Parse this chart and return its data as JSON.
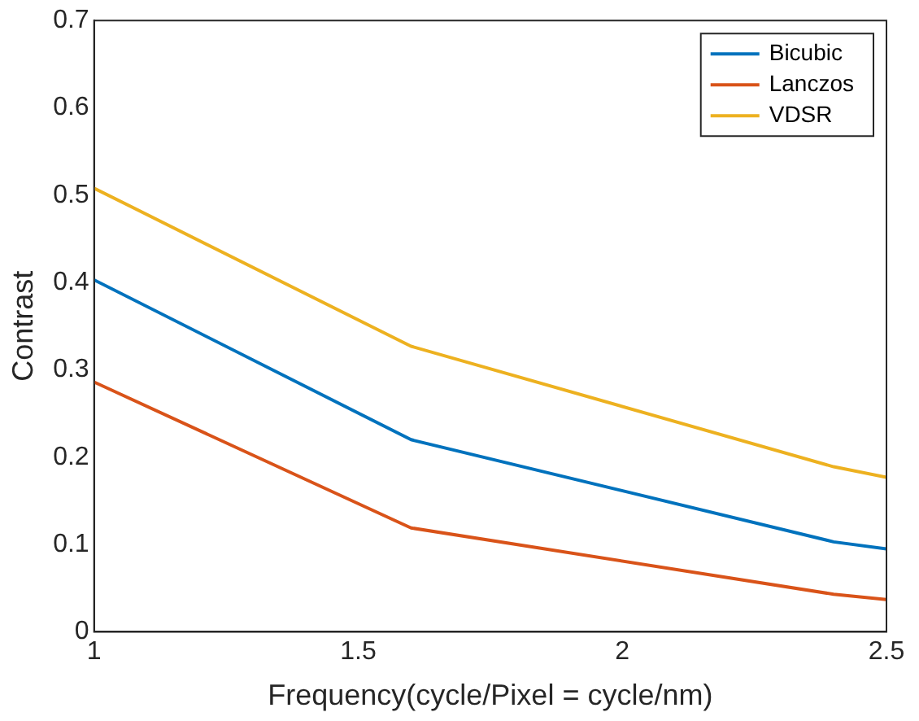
{
  "chart_data": {
    "type": "line",
    "xlabel": "Frequency(cycle/Pixel = cycle/nm)",
    "ylabel": "Contrast",
    "x": [
      1,
      1.6,
      2.4,
      2.5
    ],
    "series": [
      {
        "name": "Bicubic",
        "color": "#0072bd",
        "values": [
          0.403,
          0.22,
          0.103,
          0.095
        ]
      },
      {
        "name": "Lanczos",
        "color": "#d95319",
        "values": [
          0.286,
          0.119,
          0.043,
          0.037
        ]
      },
      {
        "name": "VDSR",
        "color": "#edb120",
        "values": [
          0.508,
          0.327,
          0.189,
          0.177
        ]
      }
    ],
    "xlim": [
      1,
      2.5
    ],
    "xticks": [
      1,
      1.5,
      2,
      2.5
    ],
    "ylim": [
      0,
      0.7
    ],
    "yticks": [
      0,
      0.1,
      0.2,
      0.3,
      0.4,
      0.5,
      0.6,
      0.7
    ],
    "grid": false,
    "legend": "top right",
    "marker": "none",
    "line_style": "solid"
  }
}
